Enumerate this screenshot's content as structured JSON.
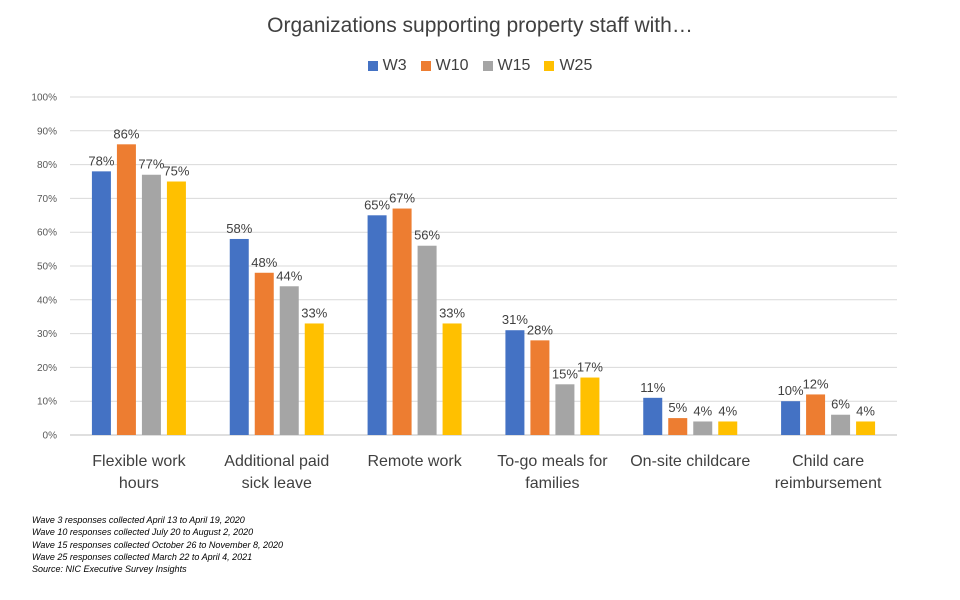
{
  "chart_data": {
    "type": "bar",
    "title": "Organizations supporting property staff with…",
    "categories": [
      [
        "Flexible work",
        "hours"
      ],
      [
        "Additional paid",
        "sick leave"
      ],
      [
        "Remote work"
      ],
      [
        "To-go meals for",
        "families"
      ],
      [
        "On-site childcare"
      ],
      [
        "Child care",
        "reimbursement"
      ]
    ],
    "series": [
      {
        "name": "W3",
        "color": "#4472C4",
        "values": [
          78,
          58,
          65,
          31,
          11,
          10
        ]
      },
      {
        "name": "W10",
        "color": "#ED7D31",
        "values": [
          86,
          48,
          67,
          28,
          5,
          12
        ]
      },
      {
        "name": "W15",
        "color": "#A5A5A5",
        "values": [
          77,
          44,
          56,
          15,
          4,
          6
        ]
      },
      {
        "name": "W25",
        "color": "#FFC000",
        "values": [
          75,
          33,
          33,
          17,
          4,
          4
        ]
      }
    ],
    "ylim": [
      0,
      100
    ],
    "yticks": [
      "0%",
      "10%",
      "20%",
      "30%",
      "40%",
      "50%",
      "60%",
      "70%",
      "80%",
      "90%",
      "100%"
    ],
    "value_suffix": "%",
    "grid": true,
    "legend_position": "top"
  },
  "footnotes": [
    "Wave 3 responses collected April 13 to April 19, 2020",
    "Wave 10 responses collected July 20 to August 2, 2020",
    "Wave 15 responses collected October 26 to November 8, 2020",
    "Wave 25 responses collected March 22 to April 4, 2021",
    "Source: NIC Executive Survey Insights"
  ]
}
